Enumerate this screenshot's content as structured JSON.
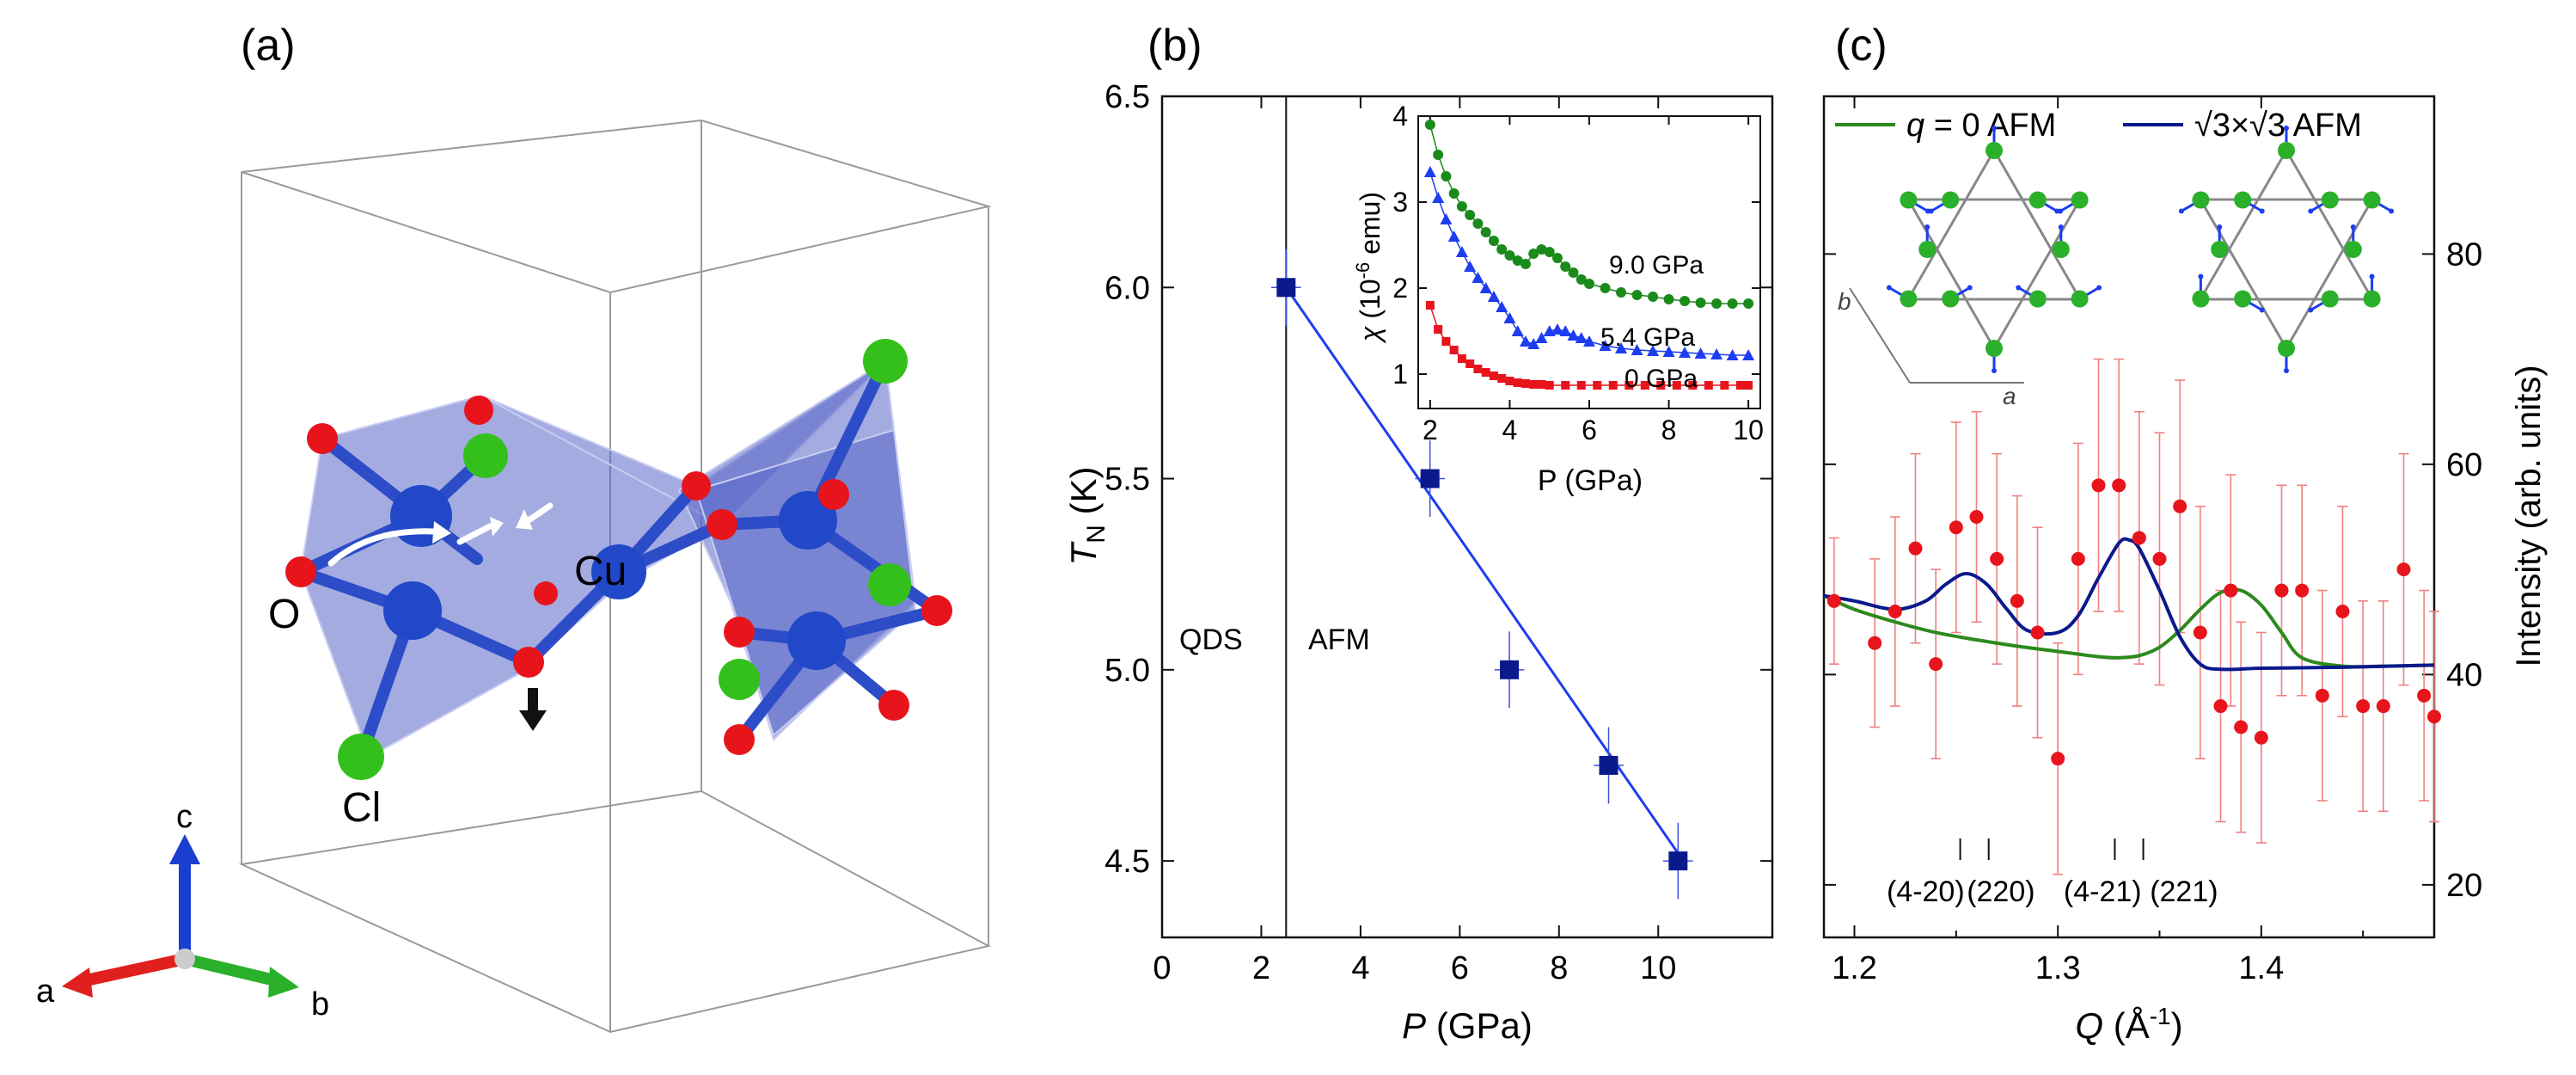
{
  "panels": {
    "a": {
      "label": "(a)",
      "atom_labels": {
        "o": "O",
        "cu": "Cu",
        "cl": "Cl"
      },
      "axes": {
        "a": "a",
        "b": "b",
        "c": "c"
      },
      "colors": {
        "oxygen": "#e8141c",
        "copper": "#2048c8",
        "chlorine": "#34c01c",
        "polyhedra": "#5866c8",
        "bond": "#2d4cc8"
      }
    },
    "b": {
      "label": "(b)",
      "region_left": "QDS",
      "region_right": "AFM"
    },
    "c": {
      "label": "(c)",
      "lattice_a": "a",
      "lattice_b": "b"
    }
  },
  "chart_data": [
    {
      "type": "scatter",
      "panel": "b",
      "xlabel": "P (GPa)",
      "ylabel": "T_N (K)",
      "xlim": [
        0,
        12.3
      ],
      "ylim": [
        4.3,
        6.5
      ],
      "xticks": [
        "0",
        "2",
        "4",
        "6",
        "8",
        "10"
      ],
      "yticks": [
        "4.5",
        "5.0",
        "5.5",
        "6.0",
        "6.5"
      ],
      "boundary_x": 2.5,
      "series": [
        {
          "color": "#0a1a8c",
          "points": [
            {
              "x": 2.5,
              "y": 6.0,
              "xerr": 0.3,
              "yerr": 0.1
            },
            {
              "x": 5.4,
              "y": 5.5,
              "xerr": 0.3,
              "yerr": 0.1
            },
            {
              "x": 7.0,
              "y": 5.0,
              "xerr": 0.3,
              "yerr": 0.1
            },
            {
              "x": 9.0,
              "y": 4.75,
              "xerr": 0.3,
              "yerr": 0.1
            },
            {
              "x": 10.4,
              "y": 4.5,
              "xerr": 0.3,
              "yerr": 0.1
            }
          ]
        }
      ],
      "fit_line": {
        "x": [
          2.5,
          10.4
        ],
        "y": [
          6.0,
          4.52
        ],
        "color": "#1e3cf0"
      }
    },
    {
      "type": "line",
      "panel": "b-inset",
      "xlabel": "P (GPa)",
      "ylabel": "χ (10^-6 emu)",
      "xlim": [
        1.7,
        10.3
      ],
      "ylim": [
        0.6,
        4.0
      ],
      "xticks": [
        "2",
        "4",
        "6",
        "8",
        "10"
      ],
      "yticks": [
        "1",
        "2",
        "3",
        "4"
      ],
      "series": [
        {
          "name": "9.0 GPa",
          "color": "#1a8a1a",
          "marker": "circle",
          "points": [
            [
              2.0,
              3.9
            ],
            [
              2.2,
              3.55
            ],
            [
              2.4,
              3.3
            ],
            [
              2.6,
              3.1
            ],
            [
              2.8,
              2.95
            ],
            [
              3.0,
              2.85
            ],
            [
              3.2,
              2.75
            ],
            [
              3.4,
              2.65
            ],
            [
              3.6,
              2.55
            ],
            [
              3.8,
              2.45
            ],
            [
              4.0,
              2.38
            ],
            [
              4.2,
              2.32
            ],
            [
              4.4,
              2.28
            ],
            [
              4.6,
              2.4
            ],
            [
              4.8,
              2.45
            ],
            [
              5.0,
              2.42
            ],
            [
              5.2,
              2.35
            ],
            [
              5.4,
              2.25
            ],
            [
              5.6,
              2.18
            ],
            [
              5.8,
              2.1
            ],
            [
              6.0,
              2.05
            ],
            [
              6.4,
              2.0
            ],
            [
              6.8,
              1.95
            ],
            [
              7.2,
              1.92
            ],
            [
              7.6,
              1.9
            ],
            [
              8.0,
              1.87
            ],
            [
              8.4,
              1.85
            ],
            [
              8.8,
              1.83
            ],
            [
              9.2,
              1.82
            ],
            [
              9.6,
              1.82
            ],
            [
              10.0,
              1.82
            ]
          ]
        },
        {
          "name": "5.4 GPa",
          "color": "#1e3cf0",
          "marker": "triangle",
          "points": [
            [
              2.0,
              3.35
            ],
            [
              2.2,
              3.05
            ],
            [
              2.4,
              2.8
            ],
            [
              2.6,
              2.6
            ],
            [
              2.8,
              2.42
            ],
            [
              3.0,
              2.25
            ],
            [
              3.2,
              2.12
            ],
            [
              3.4,
              2.0
            ],
            [
              3.6,
              1.9
            ],
            [
              3.8,
              1.78
            ],
            [
              4.0,
              1.65
            ],
            [
              4.2,
              1.5
            ],
            [
              4.4,
              1.38
            ],
            [
              4.6,
              1.35
            ],
            [
              4.8,
              1.42
            ],
            [
              5.0,
              1.5
            ],
            [
              5.2,
              1.52
            ],
            [
              5.4,
              1.5
            ],
            [
              5.6,
              1.45
            ],
            [
              5.8,
              1.42
            ],
            [
              6.0,
              1.38
            ],
            [
              6.4,
              1.33
            ],
            [
              6.8,
              1.3
            ],
            [
              7.2,
              1.28
            ],
            [
              7.6,
              1.27
            ],
            [
              8.0,
              1.26
            ],
            [
              8.4,
              1.25
            ],
            [
              8.8,
              1.24
            ],
            [
              9.2,
              1.23
            ],
            [
              9.6,
              1.22
            ],
            [
              10.0,
              1.22
            ]
          ]
        },
        {
          "name": "0 GPa",
          "color": "#e8141c",
          "marker": "square",
          "points": [
            [
              2.0,
              1.8
            ],
            [
              2.2,
              1.52
            ],
            [
              2.4,
              1.38
            ],
            [
              2.6,
              1.28
            ],
            [
              2.8,
              1.18
            ],
            [
              3.0,
              1.12
            ],
            [
              3.2,
              1.06
            ],
            [
              3.4,
              1.02
            ],
            [
              3.6,
              0.98
            ],
            [
              3.8,
              0.95
            ],
            [
              4.0,
              0.92
            ],
            [
              4.2,
              0.9
            ],
            [
              4.4,
              0.89
            ],
            [
              4.6,
              0.88
            ],
            [
              4.8,
              0.88
            ],
            [
              5.0,
              0.87
            ],
            [
              5.4,
              0.87
            ],
            [
              5.8,
              0.87
            ],
            [
              6.2,
              0.87
            ],
            [
              6.6,
              0.87
            ],
            [
              7.0,
              0.87
            ],
            [
              7.4,
              0.87
            ],
            [
              7.8,
              0.87
            ],
            [
              8.2,
              0.87
            ],
            [
              8.6,
              0.87
            ],
            [
              9.0,
              0.87
            ],
            [
              9.4,
              0.87
            ],
            [
              9.8,
              0.87
            ],
            [
              10.0,
              0.87
            ]
          ]
        }
      ]
    },
    {
      "type": "scatter",
      "panel": "c",
      "xlabel": "Q (Å^-1)",
      "ylabel": "Intensity (arb. units)",
      "xlim": [
        1.185,
        1.485
      ],
      "ylim": [
        15,
        95
      ],
      "xticks": [
        "1.2",
        "1.3",
        "1.4"
      ],
      "yticks": [
        "20",
        "40",
        "60",
        "80"
      ],
      "legend": [
        {
          "label_q": "q",
          "label_rest": " = 0 AFM",
          "color": "#2c8a1c"
        },
        {
          "label": "√3×√3 AFM",
          "color": "#0a1a8c"
        }
      ],
      "data_points": {
        "color": "#e8141c",
        "points": [
          {
            "x": 1.19,
            "y": 47,
            "err": 6
          },
          {
            "x": 1.21,
            "y": 43,
            "err": 8
          },
          {
            "x": 1.22,
            "y": 46,
            "err": 9
          },
          {
            "x": 1.23,
            "y": 52,
            "err": 9
          },
          {
            "x": 1.24,
            "y": 41,
            "err": 9
          },
          {
            "x": 1.25,
            "y": 54,
            "err": 10
          },
          {
            "x": 1.26,
            "y": 55,
            "err": 10
          },
          {
            "x": 1.27,
            "y": 51,
            "err": 10
          },
          {
            "x": 1.28,
            "y": 47,
            "err": 10
          },
          {
            "x": 1.29,
            "y": 44,
            "err": 10
          },
          {
            "x": 1.3,
            "y": 32,
            "err": 11
          },
          {
            "x": 1.31,
            "y": 51,
            "err": 11
          },
          {
            "x": 1.32,
            "y": 58,
            "err": 12
          },
          {
            "x": 1.33,
            "y": 58,
            "err": 12
          },
          {
            "x": 1.34,
            "y": 53,
            "err": 12
          },
          {
            "x": 1.35,
            "y": 51,
            "err": 12
          },
          {
            "x": 1.36,
            "y": 56,
            "err": 12
          },
          {
            "x": 1.37,
            "y": 44,
            "err": 12
          },
          {
            "x": 1.38,
            "y": 37,
            "err": 11
          },
          {
            "x": 1.385,
            "y": 48,
            "err": 11
          },
          {
            "x": 1.39,
            "y": 35,
            "err": 10
          },
          {
            "x": 1.4,
            "y": 34,
            "err": 10
          },
          {
            "x": 1.41,
            "y": 48,
            "err": 10
          },
          {
            "x": 1.42,
            "y": 48,
            "err": 10
          },
          {
            "x": 1.43,
            "y": 38,
            "err": 10
          },
          {
            "x": 1.44,
            "y": 46,
            "err": 10
          },
          {
            "x": 1.45,
            "y": 37,
            "err": 10
          },
          {
            "x": 1.46,
            "y": 37,
            "err": 10
          },
          {
            "x": 1.47,
            "y": 50,
            "err": 11
          },
          {
            "x": 1.48,
            "y": 38,
            "err": 10
          },
          {
            "x": 1.485,
            "y": 36,
            "err": 10
          }
        ]
      },
      "curves": [
        {
          "color": "#2c8a1c",
          "x": [
            1.185,
            1.2,
            1.22,
            1.24,
            1.26,
            1.28,
            1.3,
            1.32,
            1.33,
            1.34,
            1.35,
            1.36,
            1.37,
            1.38,
            1.39,
            1.4,
            1.41,
            1.42,
            1.44,
            1.46,
            1.485
          ],
          "y": [
            47.5,
            46.2,
            45.0,
            44.0,
            43.3,
            42.7,
            42.2,
            41.7,
            41.6,
            41.8,
            42.6,
            44.2,
            46.2,
            47.8,
            48.0,
            46.6,
            44.0,
            41.6,
            40.8,
            40.8,
            40.9
          ]
        },
        {
          "color": "#0a1a8c",
          "x": [
            1.185,
            1.2,
            1.22,
            1.235,
            1.245,
            1.255,
            1.265,
            1.275,
            1.285,
            1.3,
            1.31,
            1.32,
            1.33,
            1.335,
            1.34,
            1.35,
            1.36,
            1.37,
            1.38,
            1.4,
            1.44,
            1.485
          ],
          "y": [
            47.5,
            47.0,
            46.2,
            47.0,
            48.6,
            49.6,
            48.6,
            46.2,
            44.2,
            44.0,
            45.6,
            49.2,
            52.5,
            52.8,
            52.0,
            48.0,
            43.6,
            41.0,
            40.5,
            40.6,
            40.7,
            40.9
          ]
        }
      ],
      "peak_ticks": [
        1.252,
        1.266,
        1.328,
        1.342
      ],
      "peak_labels": [
        {
          "text": "(4-20)",
          "x": 1.235
        },
        {
          "text": "(220)",
          "x": 1.272
        },
        {
          "text": "(4-21)",
          "x": 1.322
        },
        {
          "text": "(221)",
          "x": 1.362
        }
      ]
    }
  ]
}
